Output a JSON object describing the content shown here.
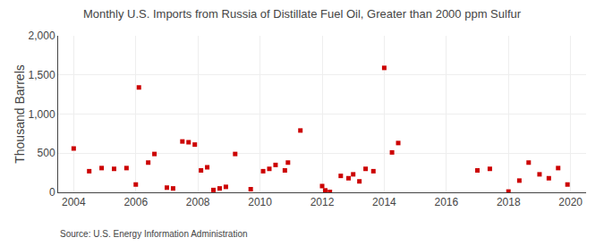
{
  "chart_data": {
    "type": "scatter",
    "title": "Monthly U.S. Imports from Russia of Distillate Fuel Oil, Greater than 2000 ppm Sulfur",
    "ylabel": "Thousand Barrels",
    "annotations": [
      "Source: U.S. Energy Information Administration"
    ],
    "x": [
      2004.0,
      2004.5,
      2004.9,
      2005.3,
      2005.7,
      2006.0,
      2006.1,
      2006.4,
      2006.6,
      2007.0,
      2007.2,
      2007.5,
      2007.7,
      2007.9,
      2008.1,
      2008.3,
      2008.5,
      2008.7,
      2008.9,
      2009.2,
      2009.7,
      2010.1,
      2010.3,
      2010.5,
      2010.8,
      2010.9,
      2011.3,
      2012.0,
      2012.1,
      2012.25,
      2012.6,
      2012.85,
      2013.0,
      2013.2,
      2013.4,
      2013.65,
      2014.0,
      2014.25,
      2014.45,
      2017.0,
      2017.4,
      2018.0,
      2018.35,
      2018.65,
      2019.0,
      2019.3,
      2019.6,
      2019.9
    ],
    "values": [
      560,
      270,
      310,
      300,
      310,
      100,
      1340,
      380,
      490,
      60,
      50,
      650,
      640,
      610,
      280,
      320,
      30,
      50,
      70,
      490,
      40,
      270,
      300,
      350,
      280,
      380,
      790,
      80,
      25,
      5,
      210,
      180,
      230,
      140,
      300,
      270,
      1590,
      510,
      630,
      280,
      300,
      10,
      150,
      380,
      230,
      180,
      310,
      100
    ],
    "color": "#cc0000",
    "marker": "square",
    "xlim": [
      2003.5,
      2020.5
    ],
    "xticks": [
      2004,
      2006,
      2008,
      2010,
      2012,
      2014,
      2016,
      2018,
      2020
    ],
    "ylim": [
      0,
      2000
    ],
    "yticks": [
      0,
      500,
      {
        "value": 1000,
        "label": "1,000"
      },
      {
        "value": 1500,
        "label": "1,500"
      },
      {
        "value": 2000,
        "label": "2,000"
      }
    ],
    "grid": true
  }
}
